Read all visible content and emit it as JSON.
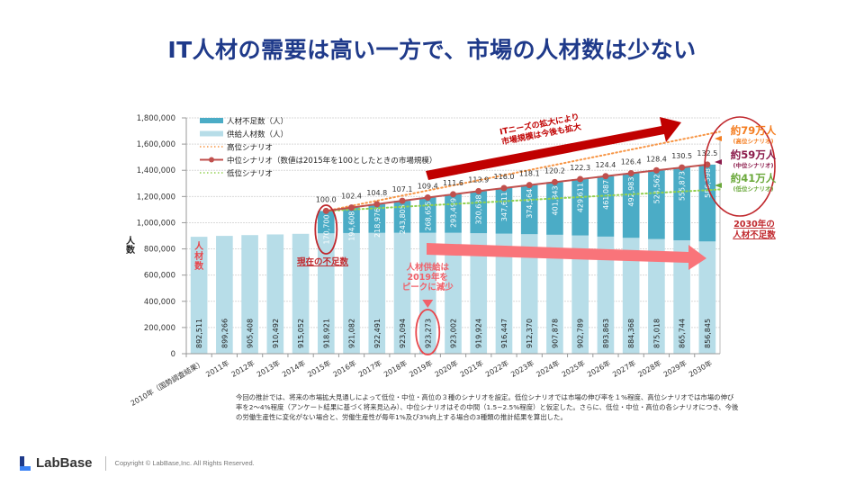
{
  "slide": {
    "title": "IT人材の需要は高い一方で、市場の人材数は少ない"
  },
  "footer": {
    "logo_text": "LabBase",
    "copyright": "Copyright ©  LabBase,Inc. All Rights Reserved."
  },
  "chart_data": {
    "type": "bar",
    "stacked": true,
    "title": "",
    "xlabel": "",
    "ylabel": "人数",
    "ylim": [
      0,
      1800000
    ],
    "yticks": [
      0,
      200000,
      400000,
      600000,
      800000,
      1000000,
      1200000,
      1400000,
      1600000,
      1800000
    ],
    "ytick_labels": [
      "0",
      "200,000",
      "400,000",
      "600,000",
      "800,000",
      "1,000,000",
      "1,200,000",
      "1,400,000",
      "1,600,000",
      "1,800,000"
    ],
    "grid": true,
    "categories": [
      "2010年（国勢調査結果）",
      "2011年",
      "2012年",
      "2013年",
      "2014年",
      "2015年",
      "2016年",
      "2017年",
      "2018年",
      "2019年",
      "2020年",
      "2021年",
      "2022年",
      "2023年",
      "2024年",
      "2025年",
      "2026年",
      "2027年",
      "2028年",
      "2029年",
      "2030年"
    ],
    "series": [
      {
        "name": "供給人材数（人）",
        "color": "#b7dde8",
        "values": [
          892511,
          899266,
          905408,
          910492,
          915052,
          918921,
          921082,
          922491,
          923094,
          923273,
          923002,
          919924,
          916447,
          912370,
          907878,
          902789,
          893863,
          884368,
          875018,
          865744,
          856845
        ],
        "labels": [
          "892,511",
          "899,266",
          "905,408",
          "910,492",
          "915,052",
          "918,921",
          "921,082",
          "922,491",
          "923,094",
          "923,273",
          "923,002",
          "919,924",
          "916,447",
          "912,370",
          "907,878",
          "902,789",
          "893,863",
          "884,368",
          "875,018",
          "865,744",
          "856,845"
        ]
      },
      {
        "name": "人材不足数（人）",
        "color": "#4bacc6",
        "values": [
          null,
          null,
          null,
          null,
          null,
          170700,
          194608,
          218976,
          243805,
          268655,
          293499,
          320638,
          347611,
          374564,
          401843,
          429611,
          461087,
          492983,
          524562,
          555873,
          586598
        ],
        "labels": [
          null,
          null,
          null,
          null,
          null,
          "170,700",
          "194,608",
          "218,976",
          "243,805",
          "268,655",
          "293,499",
          "320,638",
          "347,611",
          "374,564",
          "401,843",
          "429,611",
          "461,087",
          "492,983",
          "524,562",
          "555,873",
          "586,598"
        ]
      },
      {
        "name": "中位シナリオ（数値は2015年を100としたときの市場規模）",
        "type": "line",
        "color": "#c0504d",
        "index_values": [
          null,
          null,
          null,
          null,
          null,
          100.0,
          102.4,
          104.8,
          107.1,
          109.4,
          111.6,
          113.9,
          116.0,
          118.1,
          120.2,
          122.3,
          124.4,
          126.4,
          128.4,
          130.5,
          132.5
        ],
        "index_labels": [
          null,
          null,
          null,
          null,
          null,
          "100.0",
          "102.4",
          "104.8",
          "107.1",
          "109.4",
          "111.6",
          "113.9",
          "116.0",
          "118.1",
          "120.2",
          "122.3",
          "124.4",
          "126.4",
          "128.4",
          "130.5",
          "132.5"
        ]
      },
      {
        "name": "高位シナリオ",
        "type": "line-dotted",
        "color": "#f79646",
        "start_value": 1089621,
        "end_value": 1653443
      },
      {
        "name": "低位シナリオ",
        "type": "line-dotted",
        "color": "#92d050",
        "start_value": 1089621,
        "end_value": 1267845
      }
    ],
    "legend": {
      "placement": "top-left",
      "entries": [
        "人材不足数（人）",
        "供給人材数（人）",
        "高位シナリオ",
        "中位シナリオ（数値は2015年を100としたときの市場規模）",
        "低位シナリオ"
      ]
    },
    "annotations": {
      "bar_label_supply": "人材数",
      "current_shortage": "現在の不足数",
      "supply_peak": [
        "人材供給は",
        "2019年を",
        "ピークに減少"
      ],
      "market_growth": [
        "ITニーズの拡大により",
        "市場規模は今後も拡大"
      ],
      "scenario_high": {
        "value": "約79万人",
        "label": "(高位シナリオ)",
        "color": "#f47d20"
      },
      "scenario_mid": {
        "value": "約59万人",
        "label": "(中位シナリオ)",
        "color": "#8b1a4a"
      },
      "scenario_low": {
        "value": "約41万人",
        "label": "(低位シナリオ)",
        "color": "#6aa83a"
      },
      "shortage_2030": [
        "2030年の",
        "人材不足数"
      ]
    },
    "footnote": "今回の推計では、将来の市場拡大見通しによって低位・中位・高位の３種のシナリオを設定。低位シナリオでは市場の伸び率を１%程度、高位シナリオでは市場の伸び率を2～4%程度（アンケート結果に基づく将来見込み）、中位シナリオはその中間（1.5~2.5%程度）と仮定した。さらに、低位・中位・高位の各シナリオにつき、今後の労働生産性に変化がない場合と、労働生産性が毎年1%及び3%向上する場合の3種類の推計結果を算出した。"
  }
}
